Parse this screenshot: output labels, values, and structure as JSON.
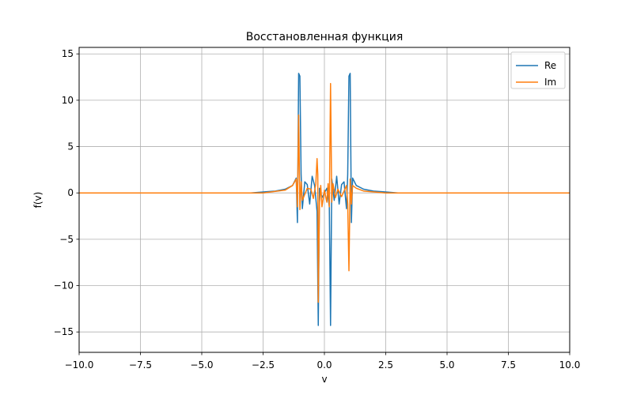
{
  "chart_data": {
    "type": "line",
    "title": "Восстановленная функция",
    "xlabel": "v",
    "ylabel": "f(v)",
    "xlim": [
      -10,
      10
    ],
    "ylim": [
      -17.2,
      15.7
    ],
    "xticks": [
      -10,
      -7.5,
      -5,
      -2.5,
      0,
      2.5,
      5,
      7.5,
      10
    ],
    "xtick_labels": [
      "−10.0",
      "−7.5",
      "−5.0",
      "−2.5",
      "0.0",
      "2.5",
      "5.0",
      "7.5",
      "10.0"
    ],
    "yticks": [
      -15,
      -10,
      -5,
      0,
      5,
      10,
      15
    ],
    "ytick_labels": [
      "−15",
      "−10",
      "−5",
      "0",
      "5",
      "10",
      "15"
    ],
    "grid": true,
    "legend_position": "top-right",
    "series": [
      {
        "name": "Re",
        "color": "#1f77b4",
        "points": [
          [
            -10,
            0
          ],
          [
            -3,
            0
          ],
          [
            -2.5,
            0.1
          ],
          [
            -2,
            0.2
          ],
          [
            -1.6,
            0.4
          ],
          [
            -1.3,
            0.8
          ],
          [
            -1.15,
            1.6
          ],
          [
            -1.1,
            -3.2
          ],
          [
            -1.05,
            12.9
          ],
          [
            -1.0,
            12.6
          ],
          [
            -0.95,
            2.0
          ],
          [
            -0.9,
            -1.7
          ],
          [
            -0.8,
            1.2
          ],
          [
            -0.7,
            0.9
          ],
          [
            -0.6,
            -1.2
          ],
          [
            -0.5,
            1.8
          ],
          [
            -0.4,
            0.8
          ],
          [
            -0.3,
            -2.0
          ],
          [
            -0.25,
            -14.3
          ],
          [
            -0.2,
            0.5
          ],
          [
            -0.1,
            -0.5
          ],
          [
            0.0,
            0.0
          ],
          [
            0.1,
            0.5
          ],
          [
            0.2,
            -1.5
          ],
          [
            0.25,
            -14.3
          ],
          [
            0.3,
            1.5
          ],
          [
            0.4,
            -0.8
          ],
          [
            0.5,
            1.8
          ],
          [
            0.6,
            -1.2
          ],
          [
            0.7,
            0.9
          ],
          [
            0.8,
            1.2
          ],
          [
            0.9,
            -1.7
          ],
          [
            0.95,
            2.0
          ],
          [
            1.0,
            12.6
          ],
          [
            1.05,
            12.9
          ],
          [
            1.1,
            -3.2
          ],
          [
            1.15,
            1.6
          ],
          [
            1.3,
            0.8
          ],
          [
            1.6,
            0.4
          ],
          [
            2.0,
            0.2
          ],
          [
            2.5,
            0.1
          ],
          [
            3.0,
            0
          ],
          [
            10,
            0
          ]
        ]
      },
      {
        "name": "Im",
        "color": "#ff7f0e",
        "points": [
          [
            -10,
            0
          ],
          [
            -2.5,
            0
          ],
          [
            -1.6,
            0.3
          ],
          [
            -1.3,
            0.8
          ],
          [
            -1.15,
            1.5
          ],
          [
            -1.1,
            -1.5
          ],
          [
            -1.05,
            8.4
          ],
          [
            -1.0,
            -1.8
          ],
          [
            -0.95,
            1.2
          ],
          [
            -0.9,
            -0.8
          ],
          [
            -0.7,
            0.5
          ],
          [
            -0.55,
            0.4
          ],
          [
            -0.45,
            -0.6
          ],
          [
            -0.35,
            1.0
          ],
          [
            -0.3,
            3.7
          ],
          [
            -0.27,
            2.0
          ],
          [
            -0.25,
            -11.8
          ],
          [
            -0.2,
            -1.0
          ],
          [
            -0.15,
            0.8
          ],
          [
            -0.1,
            -1.5
          ],
          [
            0.0,
            0.3
          ],
          [
            0.1,
            -1.0
          ],
          [
            0.15,
            1.0
          ],
          [
            0.2,
            -1.5
          ],
          [
            0.25,
            11.8
          ],
          [
            0.3,
            -1.0
          ],
          [
            0.35,
            1.0
          ],
          [
            0.45,
            -0.5
          ],
          [
            0.55,
            0.4
          ],
          [
            0.7,
            -0.4
          ],
          [
            0.9,
            0.8
          ],
          [
            0.95,
            -1.2
          ],
          [
            1.0,
            -8.4
          ],
          [
            1.05,
            1.5
          ],
          [
            1.1,
            -1.2
          ],
          [
            1.15,
            0.8
          ],
          [
            1.3,
            0.5
          ],
          [
            1.6,
            0.2
          ],
          [
            2.5,
            0
          ],
          [
            10,
            0
          ]
        ]
      }
    ]
  }
}
